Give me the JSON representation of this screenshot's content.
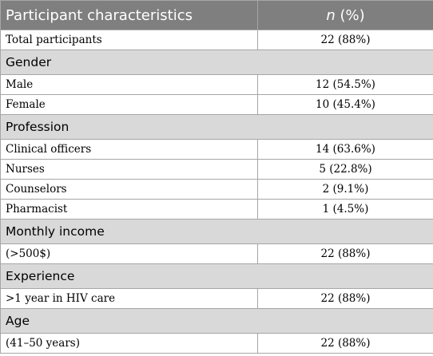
{
  "table": {
    "header": {
      "characteristic": "Participant characteristics",
      "value_italic": "n",
      "value_rest": " (%)"
    },
    "rows": [
      {
        "type": "row",
        "label": "Total participants",
        "value": "22 (88%)"
      },
      {
        "type": "section",
        "label": "Gender"
      },
      {
        "type": "row",
        "label": "Male",
        "value": "12 (54.5%)"
      },
      {
        "type": "row",
        "label": "Female",
        "value": "10 (45.4%)"
      },
      {
        "type": "section",
        "label": "Profession"
      },
      {
        "type": "row",
        "label": "Clinical officers",
        "value": "14 (63.6%)"
      },
      {
        "type": "row",
        "label": "Nurses",
        "value": "5 (22.8%)"
      },
      {
        "type": "row",
        "label": "Counselors",
        "value": "2 (9.1%)"
      },
      {
        "type": "row",
        "label": "Pharmacist",
        "value": "1 (4.5%)"
      },
      {
        "type": "section",
        "label": "Monthly income"
      },
      {
        "type": "row",
        "label": "(>500$)",
        "value": "22 (88%)"
      },
      {
        "type": "section",
        "label": "Experience"
      },
      {
        "type": "row",
        "label": ">1 year in HIV care",
        "value": "22 (88%)"
      },
      {
        "type": "section",
        "label": "Age"
      },
      {
        "type": "row",
        "label": "(41–50 years)",
        "value": "22 (88%)"
      }
    ]
  }
}
